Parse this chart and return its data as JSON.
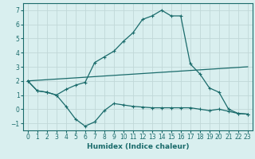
{
  "xlabel": "Humidex (Indice chaleur)",
  "background_color": "#d9efef",
  "grid_color": "#c0d8d8",
  "line_color": "#1a6b6b",
  "xlim": [
    -0.5,
    23.5
  ],
  "ylim": [
    -1.5,
    7.5
  ],
  "xticks": [
    0,
    1,
    2,
    3,
    4,
    5,
    6,
    7,
    8,
    9,
    10,
    11,
    12,
    13,
    14,
    15,
    16,
    17,
    18,
    19,
    20,
    21,
    22,
    23
  ],
  "yticks": [
    -1,
    0,
    1,
    2,
    3,
    4,
    5,
    6,
    7
  ],
  "line1_x": [
    0,
    1,
    2,
    3,
    4,
    5,
    6,
    7,
    8,
    9,
    10,
    11,
    12,
    13,
    14,
    15,
    16,
    17,
    18,
    19,
    20,
    21,
    22,
    23
  ],
  "line1_y": [
    2.0,
    1.3,
    1.2,
    1.0,
    0.2,
    -0.7,
    -1.2,
    -0.9,
    -0.1,
    0.4,
    0.3,
    0.2,
    0.15,
    0.1,
    0.1,
    0.1,
    0.1,
    0.1,
    0.0,
    -0.1,
    0.0,
    -0.15,
    -0.3,
    -0.35
  ],
  "line2_x": [
    0,
    1,
    2,
    3,
    4,
    5,
    6,
    7,
    8,
    9,
    10,
    11,
    12,
    13,
    14,
    15,
    16,
    17,
    18,
    19,
    20,
    21,
    22,
    23
  ],
  "line2_y": [
    2.0,
    1.3,
    1.2,
    1.0,
    1.4,
    1.7,
    1.9,
    3.3,
    3.7,
    4.1,
    4.8,
    5.4,
    6.35,
    6.6,
    7.0,
    6.6,
    6.6,
    3.2,
    2.5,
    1.5,
    1.2,
    0.0,
    -0.3,
    -0.35
  ],
  "line3_x": [
    0,
    23
  ],
  "line3_y": [
    2.0,
    3.0
  ],
  "marker_size": 2.5,
  "line_width": 0.9,
  "tick_labelsize": 5.5,
  "xlabel_fontsize": 6.5
}
